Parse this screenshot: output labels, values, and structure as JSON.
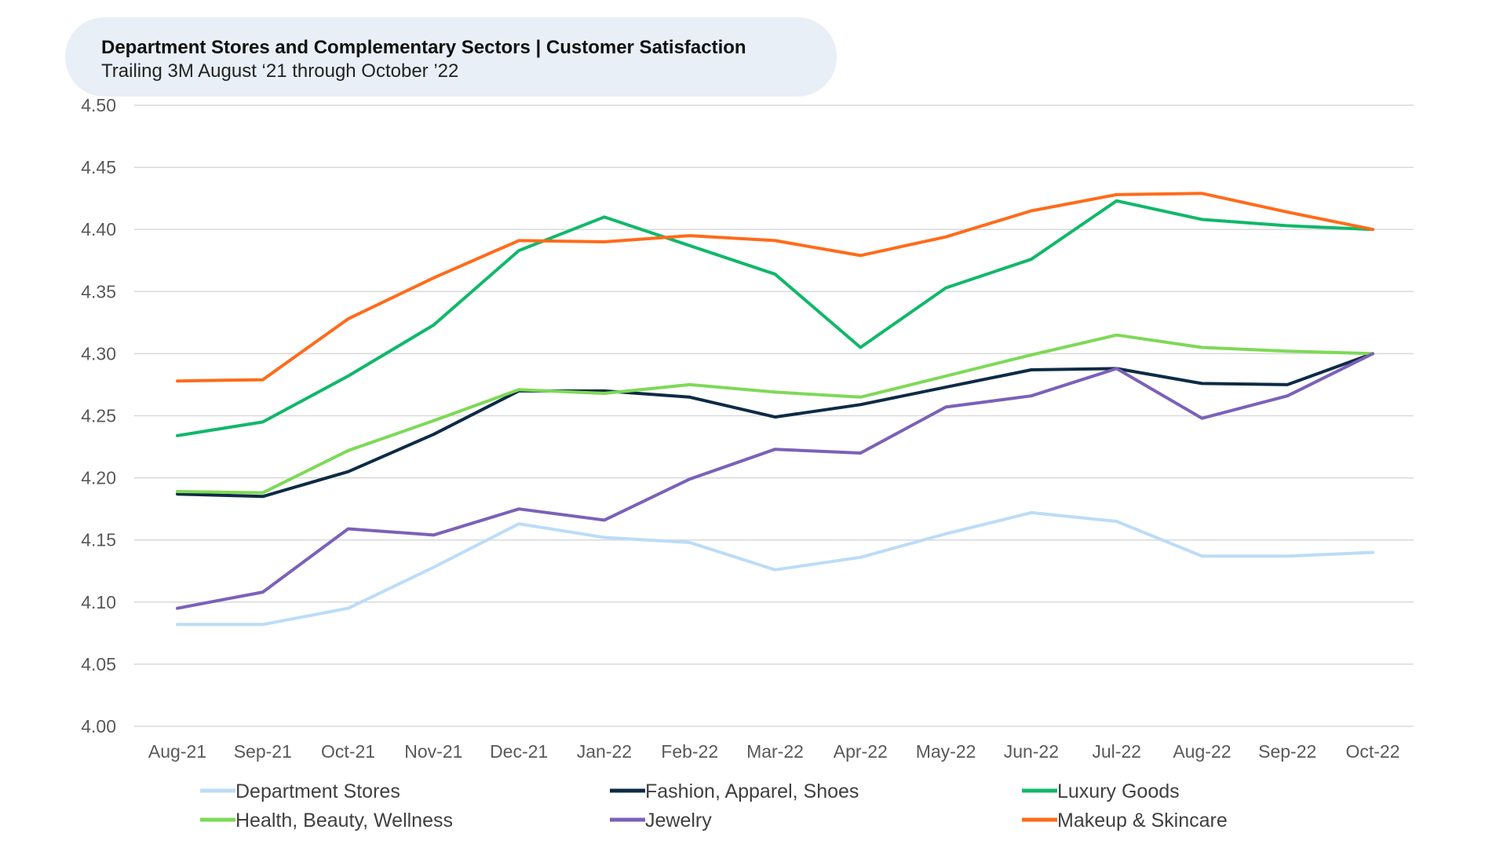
{
  "chart_data": {
    "type": "line",
    "title": "Department Stores and Complementary Sectors | Customer Satisfaction",
    "subtitle": "Trailing 3M August ‘21 through October ’22",
    "xlabel": "",
    "ylabel": "",
    "ylim": [
      4.0,
      4.5
    ],
    "yticks": [
      "4.00",
      "4.05",
      "4.10",
      "4.15",
      "4.20",
      "4.25",
      "4.30",
      "4.35",
      "4.40",
      "4.45",
      "4.50"
    ],
    "grid": true,
    "legend_position": "bottom",
    "categories": [
      "Aug-21",
      "Sep-21",
      "Oct-21",
      "Nov-21",
      "Dec-21",
      "Jan-22",
      "Feb-22",
      "Mar-22",
      "Apr-22",
      "May-22",
      "Jun-22",
      "Jul-22",
      "Aug-22",
      "Sep-22",
      "Oct-22"
    ],
    "series": [
      {
        "name": "Department Stores",
        "color": "#bcdcf7",
        "values": [
          4.082,
          4.082,
          4.095,
          4.128,
          4.163,
          4.152,
          4.148,
          4.126,
          4.136,
          4.155,
          4.172,
          4.165,
          4.137,
          4.137,
          4.14
        ]
      },
      {
        "name": "Fashion, Apparel, Shoes",
        "color": "#0d2b45",
        "values": [
          4.187,
          4.185,
          4.205,
          4.235,
          4.27,
          4.27,
          4.265,
          4.249,
          4.259,
          4.273,
          4.287,
          4.288,
          4.276,
          4.275,
          4.3
        ]
      },
      {
        "name": "Luxury Goods",
        "color": "#10b86a",
        "values": [
          4.234,
          4.245,
          4.282,
          4.323,
          4.383,
          4.41,
          4.387,
          4.364,
          4.305,
          4.353,
          4.376,
          4.423,
          4.408,
          4.403,
          4.4
        ]
      },
      {
        "name": "Health, Beauty, Wellness",
        "color": "#7ed957",
        "values": [
          4.189,
          4.188,
          4.222,
          4.246,
          4.271,
          4.268,
          4.275,
          4.269,
          4.265,
          4.282,
          4.299,
          4.315,
          4.305,
          4.302,
          4.3
        ]
      },
      {
        "name": "Jewelry",
        "color": "#7b61b8",
        "values": [
          4.095,
          4.108,
          4.159,
          4.154,
          4.175,
          4.166,
          4.199,
          4.223,
          4.22,
          4.257,
          4.266,
          4.288,
          4.248,
          4.266,
          4.3
        ]
      },
      {
        "name": "Makeup & Skincare",
        "color": "#ff6b1a",
        "values": [
          4.278,
          4.279,
          4.328,
          4.361,
          4.391,
          4.39,
          4.395,
          4.391,
          4.379,
          4.394,
          4.415,
          4.428,
          4.429,
          4.414,
          4.4
        ]
      }
    ]
  }
}
